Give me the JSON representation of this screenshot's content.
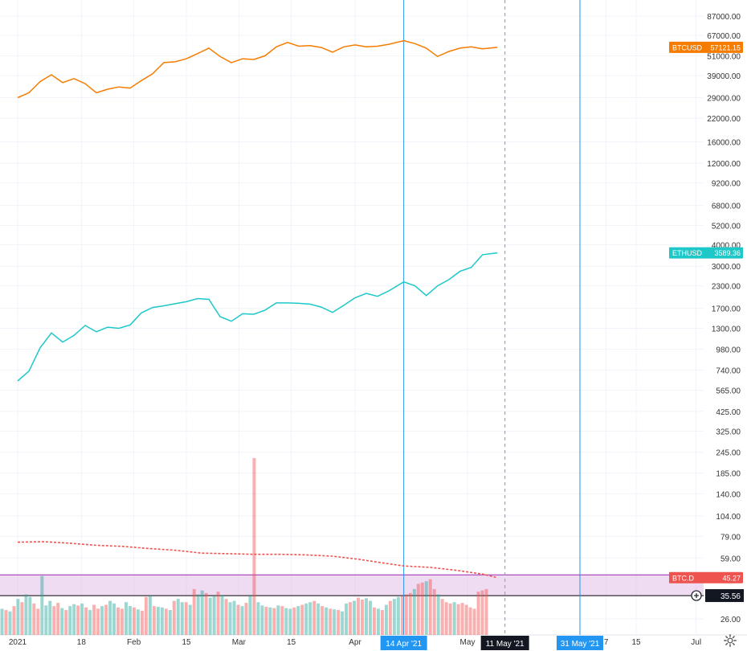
{
  "chart_data": {
    "type": "line",
    "title": "",
    "y_axis": {
      "scale": "log",
      "position": "right",
      "tick_labels": [
        "87000.00",
        "67000.00",
        "51000.00",
        "39000.00",
        "29000.00",
        "22000.00",
        "16000.00",
        "12000.00",
        "9200.00",
        "6800.00",
        "5200.00",
        "4000.00",
        "3000.00",
        "2300.00",
        "1700.00",
        "1300.00",
        "980.00",
        "740.00",
        "565.00",
        "425.00",
        "325.00",
        "245.00",
        "185.00",
        "140.00",
        "104.00",
        "79.00",
        "59.00",
        "26.00"
      ],
      "range": [
        22,
        100000
      ]
    },
    "x_axis": {
      "type": "date",
      "range": [
        "2021-01-01",
        "2021-07-05"
      ],
      "tick_labels": [
        {
          "date": "2021-01-01",
          "label": "2021"
        },
        {
          "date": "2021-01-18",
          "label": "18"
        },
        {
          "date": "2021-02-01",
          "label": "Feb"
        },
        {
          "date": "2021-02-15",
          "label": "15"
        },
        {
          "date": "2021-03-01",
          "label": "Mar"
        },
        {
          "date": "2021-03-15",
          "label": "15"
        },
        {
          "date": "2021-04-01",
          "label": "Apr"
        },
        {
          "date": "2021-05-01",
          "label": "May"
        },
        {
          "date": "2021-06-07",
          "label": "7"
        },
        {
          "date": "2021-06-15",
          "label": "15"
        },
        {
          "date": "2021-07-01",
          "label": "Jul"
        }
      ]
    },
    "grid": true,
    "series": [
      {
        "name": "BTCUSD",
        "color": "#f57c00",
        "last_value": "57121.15",
        "x": [
          "2021-01-01",
          "2021-01-04",
          "2021-01-07",
          "2021-01-10",
          "2021-01-13",
          "2021-01-16",
          "2021-01-19",
          "2021-01-22",
          "2021-01-25",
          "2021-01-28",
          "2021-01-31",
          "2021-02-03",
          "2021-02-06",
          "2021-02-09",
          "2021-02-12",
          "2021-02-15",
          "2021-02-18",
          "2021-02-21",
          "2021-02-24",
          "2021-02-27",
          "2021-03-02",
          "2021-03-05",
          "2021-03-08",
          "2021-03-11",
          "2021-03-14",
          "2021-03-17",
          "2021-03-20",
          "2021-03-23",
          "2021-03-26",
          "2021-03-29",
          "2021-04-01",
          "2021-04-04",
          "2021-04-07",
          "2021-04-10",
          "2021-04-14",
          "2021-04-17",
          "2021-04-20",
          "2021-04-23",
          "2021-04-26",
          "2021-04-29",
          "2021-05-02",
          "2021-05-05",
          "2021-05-09"
        ],
        "values": [
          29000,
          31000,
          36000,
          39500,
          35500,
          37500,
          35000,
          31000,
          32500,
          33500,
          33000,
          36500,
          40000,
          46500,
          47000,
          49000,
          52500,
          56500,
          50500,
          46500,
          49000,
          48500,
          51000,
          57500,
          61000,
          58000,
          58500,
          57000,
          53500,
          57500,
          59000,
          57500,
          58000,
          59500,
          62500,
          60000,
          56500,
          50500,
          54000,
          56500,
          57500,
          56000,
          57100
        ]
      },
      {
        "name": "ETHUSD",
        "color": "#1ec8c8",
        "last_value": "3589.36",
        "x": [
          "2021-01-01",
          "2021-01-04",
          "2021-01-07",
          "2021-01-10",
          "2021-01-13",
          "2021-01-16",
          "2021-01-19",
          "2021-01-22",
          "2021-01-25",
          "2021-01-28",
          "2021-01-31",
          "2021-02-03",
          "2021-02-06",
          "2021-02-09",
          "2021-02-12",
          "2021-02-15",
          "2021-02-18",
          "2021-02-21",
          "2021-02-24",
          "2021-02-27",
          "2021-03-02",
          "2021-03-05",
          "2021-03-08",
          "2021-03-11",
          "2021-03-14",
          "2021-03-17",
          "2021-03-20",
          "2021-03-23",
          "2021-03-26",
          "2021-03-29",
          "2021-04-01",
          "2021-04-04",
          "2021-04-07",
          "2021-04-10",
          "2021-04-14",
          "2021-04-17",
          "2021-04-20",
          "2021-04-23",
          "2021-04-26",
          "2021-04-29",
          "2021-05-02",
          "2021-05-05",
          "2021-05-09"
        ],
        "values": [
          640,
          730,
          1000,
          1220,
          1080,
          1180,
          1350,
          1240,
          1320,
          1300,
          1360,
          1600,
          1720,
          1760,
          1810,
          1860,
          1940,
          1920,
          1520,
          1430,
          1580,
          1570,
          1660,
          1830,
          1830,
          1820,
          1800,
          1730,
          1610,
          1770,
          1960,
          2080,
          2000,
          2150,
          2430,
          2300,
          2020,
          2300,
          2500,
          2800,
          2950,
          3500,
          3589
        ]
      },
      {
        "name": "BTC.D",
        "color": "#ef5350",
        "last_value": "45.27",
        "style": "dotted-line-with-volume-bars",
        "x": [
          "2021-01-01",
          "2021-01-08",
          "2021-01-15",
          "2021-01-22",
          "2021-01-29",
          "2021-02-05",
          "2021-02-12",
          "2021-02-19",
          "2021-02-26",
          "2021-03-05",
          "2021-03-12",
          "2021-03-19",
          "2021-03-26",
          "2021-04-02",
          "2021-04-09",
          "2021-04-14",
          "2021-04-21",
          "2021-04-28",
          "2021-05-05",
          "2021-05-09"
        ],
        "values": [
          73,
          73.5,
          72,
          70,
          69,
          67,
          65.5,
          63,
          62.5,
          62,
          62,
          61.5,
          60.5,
          58,
          55,
          53,
          52,
          50,
          47.5,
          45.27
        ]
      }
    ],
    "horizontal_lines": [
      {
        "value": 35.56,
        "label": "35.56",
        "color": "#000000"
      },
      {
        "value": 47.0,
        "color": "#9c27b0"
      }
    ],
    "shaded_band": {
      "from": 35.56,
      "to": 47.0,
      "color": "#e1bee7"
    },
    "vertical_lines": [
      {
        "date": "2021-04-14",
        "label": "14 Apr '21",
        "color": "#2196f3"
      },
      {
        "date": "2021-05-31",
        "label": "31 May '21",
        "color": "#2196f3"
      }
    ],
    "crosshair": {
      "date": "2021-05-11",
      "label": "11 May '21"
    },
    "volume_bars": {
      "colors": {
        "up": "#26a69a",
        "down": "#ef5350"
      },
      "values": [
        40,
        38,
        36,
        44,
        55,
        50,
        62,
        58,
        48,
        40,
        90,
        45,
        52,
        44,
        49,
        41,
        38,
        44,
        47,
        45,
        48,
        42,
        38,
        46,
        40,
        44,
        46,
        52,
        48,
        42,
        40,
        50,
        44,
        42,
        39,
        37,
        58,
        60,
        44,
        43,
        42,
        40,
        38,
        52,
        55,
        50,
        50,
        46,
        70,
        62,
        68,
        64,
        57,
        60,
        66,
        61,
        55,
        50,
        52,
        46,
        44,
        49,
        60,
        270,
        50,
        45,
        43,
        42,
        41,
        45,
        44,
        41,
        40,
        42,
        44,
        46,
        48,
        50,
        52,
        48,
        44,
        42,
        40,
        39,
        38,
        36,
        48,
        50,
        52,
        57,
        54,
        56,
        52,
        42,
        40,
        38,
        46,
        52,
        55,
        58,
        60,
        62,
        64,
        70,
        78,
        80,
        82,
        85,
        70,
        62,
        55,
        50,
        48,
        50,
        47,
        49,
        46,
        42,
        40,
        66,
        68,
        70
      ],
      "ups": [
        1,
        0,
        1,
        0,
        1,
        0,
        1,
        1,
        0,
        0,
        1,
        1,
        1,
        0,
        0,
        1,
        0,
        1,
        1,
        0,
        1,
        0,
        1,
        0,
        0,
        1,
        0,
        1,
        1,
        0,
        0,
        1,
        1,
        0,
        1,
        0,
        0,
        1,
        0,
        1,
        1,
        0,
        1,
        0,
        1,
        1,
        0,
        1,
        0,
        1,
        1,
        0,
        1,
        1,
        0,
        1,
        0,
        1,
        1,
        0,
        1,
        0,
        1,
        0,
        1,
        1,
        0,
        1,
        0,
        1,
        0,
        1,
        1,
        0,
        1,
        0,
        1,
        1,
        0,
        1,
        0,
        1,
        0,
        1,
        0,
        1,
        1,
        0,
        1,
        0,
        0,
        1,
        1,
        0,
        1,
        0,
        1,
        0,
        1,
        1,
        0,
        0,
        0,
        1,
        0,
        0,
        1,
        0,
        0,
        1,
        0,
        0,
        0,
        1,
        0,
        0,
        0,
        0,
        0,
        0,
        0,
        0
      ]
    }
  }
}
